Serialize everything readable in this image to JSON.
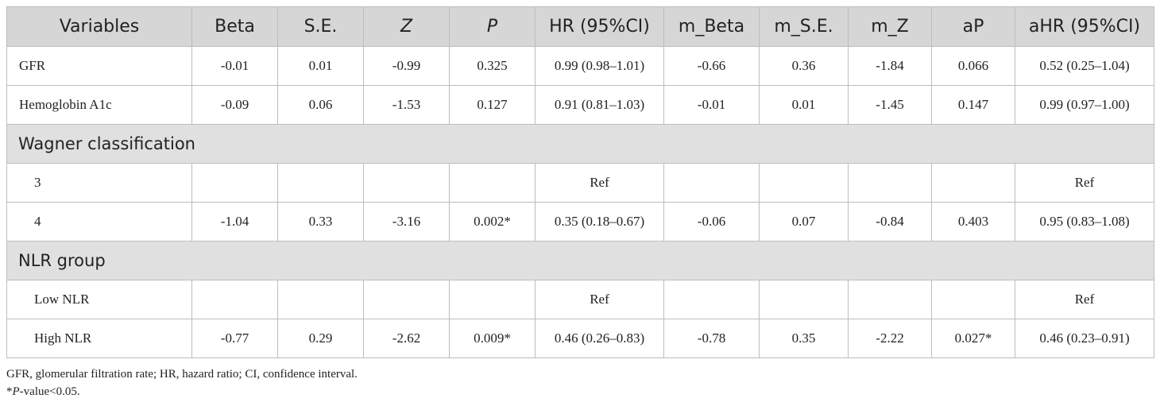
{
  "table": {
    "headers": [
      "Variables",
      "Beta",
      "S.E.",
      "Z",
      "P",
      "HR (95%CI)",
      "m_Beta",
      "m_S.E.",
      "m_Z",
      "aP",
      "aHR (95%CI)"
    ],
    "rows": {
      "gfr": {
        "label": "GFR",
        "cells": [
          "-0.01",
          "0.01",
          "-0.99",
          "0.325",
          "0.99 (0.98–1.01)",
          "-0.66",
          "0.36",
          "-1.84",
          "0.066",
          "0.52 (0.25–1.04)"
        ]
      },
      "hba1c": {
        "label": "Hemoglobin A1c",
        "cells": [
          "-0.09",
          "0.06",
          "-1.53",
          "0.127",
          "0.91 (0.81–1.03)",
          "-0.01",
          "0.01",
          "-1.45",
          "0.147",
          "0.99 (0.97–1.00)"
        ]
      },
      "wagner_section": "Wagner classification",
      "wagner3": {
        "label": "3",
        "cells": [
          "",
          "",
          "",
          "",
          "Ref",
          "",
          "",
          "",
          "",
          "Ref"
        ]
      },
      "wagner4": {
        "label": "4",
        "cells": [
          "-1.04",
          "0.33",
          "-3.16",
          "0.002*",
          "0.35 (0.18–0.67)",
          "-0.06",
          "0.07",
          "-0.84",
          "0.403",
          "0.95 (0.83–1.08)"
        ]
      },
      "nlr_section": "NLR group",
      "low_nlr": {
        "label": "Low NLR",
        "cells": [
          "",
          "",
          "",
          "",
          "Ref",
          "",
          "",
          "",
          "",
          "Ref"
        ]
      },
      "high_nlr": {
        "label": "High NLR",
        "cells": [
          "-0.77",
          "0.29",
          "-2.62",
          "0.009*",
          "0.46 (0.26–0.83)",
          "-0.78",
          "0.35",
          "-2.22",
          "0.027*",
          "0.46 (0.23–0.91)"
        ]
      }
    }
  },
  "footnotes": {
    "abbrev": "GFR, glomerular filtration rate; HR, hazard ratio; CI, confidence interval.",
    "sig_star": "*",
    "sig_p": "P",
    "sig_rest": "-value<0.05."
  }
}
